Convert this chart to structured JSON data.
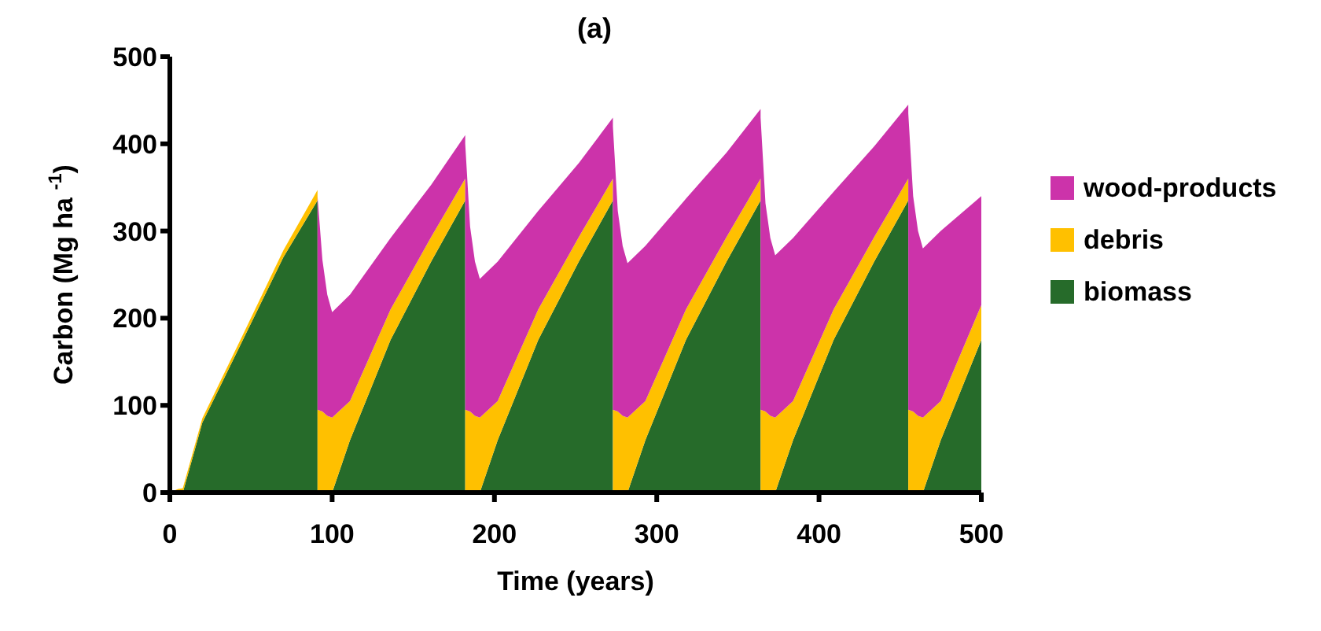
{
  "chart_data": {
    "type": "area",
    "stacked": true,
    "title": "(a)",
    "xlabel": "Time (years)",
    "ylabel": "Carbon (Mg ha $^{-1}$)",
    "x": [
      0,
      5,
      8,
      20,
      45,
      70,
      91,
      91,
      94,
      97,
      100,
      111,
      136,
      161,
      182,
      182,
      185,
      188,
      191,
      202,
      227,
      252,
      273,
      273,
      276,
      279,
      282,
      293,
      318,
      343,
      364,
      364,
      367,
      370,
      373,
      384,
      409,
      434,
      455,
      455,
      458,
      461,
      464,
      475,
      500
    ],
    "series": [
      {
        "name": "biomass",
        "color": "#266b2a",
        "values": [
          0,
          0,
          0,
          80,
          175,
          270,
          335,
          0,
          0,
          0,
          0,
          60,
          175,
          265,
          335,
          0,
          0,
          0,
          0,
          60,
          175,
          265,
          335,
          0,
          0,
          0,
          0,
          60,
          175,
          265,
          335,
          0,
          0,
          0,
          0,
          60,
          175,
          265,
          335,
          0,
          0,
          0,
          0,
          60,
          175
        ]
      },
      {
        "name": "debris",
        "color": "#ffc000",
        "values": [
          0,
          4,
          5,
          5,
          6,
          8,
          12,
          95,
          93,
          88,
          86,
          45,
          35,
          28,
          25,
          95,
          93,
          88,
          86,
          45,
          35,
          28,
          25,
          95,
          93,
          88,
          86,
          45,
          35,
          28,
          25,
          95,
          93,
          88,
          86,
          45,
          35,
          28,
          25,
          95,
          93,
          88,
          86,
          45,
          40
        ]
      },
      {
        "name": "wood-products",
        "color": "#cc33aa",
        "values": [
          0,
          0,
          0,
          0,
          0,
          0,
          0,
          245,
          174,
          139,
          121,
          122,
          82,
          60,
          50,
          305,
          212,
          177,
          159,
          160,
          113,
          85,
          70,
          325,
          230,
          195,
          177,
          178,
          127,
          97,
          80,
          335,
          239,
          204,
          186,
          187,
          135,
          104,
          85,
          340,
          247,
          212,
          194,
          195,
          125
        ]
      }
    ],
    "xlim": [
      0,
      500
    ],
    "xticks": [
      0,
      100,
      200,
      300,
      400,
      500
    ],
    "ylim": [
      0,
      500
    ],
    "yticks": [
      0,
      100,
      200,
      300,
      400,
      500
    ],
    "grid": false,
    "legend": "right"
  }
}
